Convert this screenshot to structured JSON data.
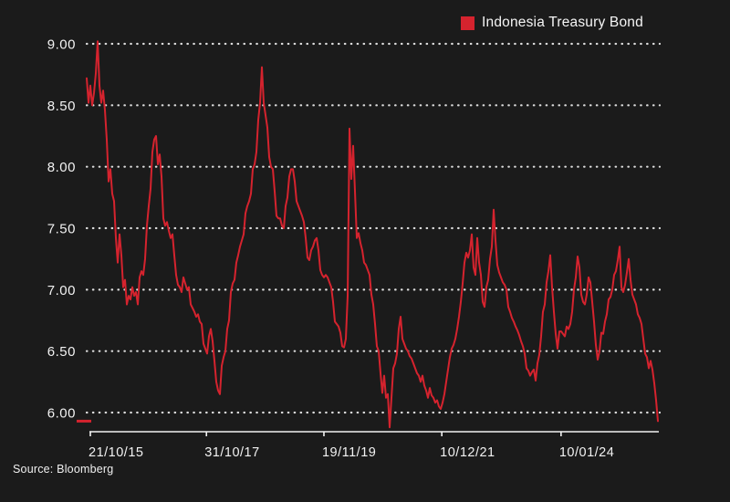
{
  "legend": {
    "label": "Indonesia Treasury Bond"
  },
  "source": {
    "label": "Source: Bloomberg"
  },
  "colors": {
    "background": "#1b1b1b",
    "line": "#d5232e",
    "text": "#f2f2f2",
    "grid": "#ededed",
    "axis": "#f2f2f2"
  },
  "chart_data": {
    "type": "line",
    "title": "",
    "xlabel": "",
    "ylabel": "",
    "legend_position": "top-right",
    "grid": "horizontal-dotted",
    "series_name": "Indonesia Treasury Bond",
    "ylim": [
      5.85,
      9.05
    ],
    "yticks": [
      {
        "label": "9.00",
        "value": 9.0
      },
      {
        "label": "8.50",
        "value": 8.5
      },
      {
        "label": "8.00",
        "value": 8.0
      },
      {
        "label": "7.50",
        "value": 7.5
      },
      {
        "label": "7.00",
        "value": 7.0
      },
      {
        "label": "6.50",
        "value": 6.5
      },
      {
        "label": "6.00",
        "value": 6.0
      }
    ],
    "xticks": [
      {
        "label": "21/10/15",
        "year": 2015.803
      },
      {
        "label": "31/10/17",
        "year": 2017.831
      },
      {
        "label": "19/11/19",
        "year": 2019.883
      },
      {
        "label": "10/12/21",
        "year": 2021.942
      },
      {
        "label": "10/01/24",
        "year": 2024.025
      }
    ],
    "t0": 2015.74,
    "dt": 0.0319,
    "last_value": 5.93,
    "values": [
      8.72,
      8.52,
      8.66,
      8.5,
      8.6,
      8.76,
      9.02,
      8.66,
      8.52,
      8.62,
      8.46,
      8.22,
      7.88,
      7.98,
      7.78,
      7.72,
      7.42,
      7.22,
      7.45,
      7.28,
      7.02,
      7.08,
      6.88,
      6.95,
      6.92,
      7.02,
      6.95,
      6.98,
      6.88,
      7.1,
      7.15,
      7.12,
      7.25,
      7.52,
      7.68,
      7.82,
      8.12,
      8.22,
      8.25,
      8.02,
      8.1,
      7.92,
      7.58,
      7.52,
      7.55,
      7.48,
      7.42,
      7.45,
      7.28,
      7.12,
      7.04,
      7.02,
      6.98,
      7.1,
      7.05,
      7.0,
      7.02,
      6.88,
      6.85,
      6.82,
      6.78,
      6.8,
      6.74,
      6.72,
      6.56,
      6.52,
      6.48,
      6.62,
      6.68,
      6.58,
      6.42,
      6.25,
      6.18,
      6.15,
      6.38,
      6.45,
      6.5,
      6.68,
      6.75,
      6.98,
      7.05,
      7.08,
      7.22,
      7.28,
      7.35,
      7.4,
      7.45,
      7.62,
      7.68,
      7.72,
      7.78,
      7.98,
      8.02,
      8.12,
      8.38,
      8.52,
      8.81,
      8.52,
      8.42,
      8.32,
      8.08,
      8.0,
      7.98,
      7.8,
      7.6,
      7.58,
      7.58,
      7.52,
      7.5,
      7.68,
      7.75,
      7.92,
      7.98,
      7.98,
      7.88,
      7.72,
      7.68,
      7.64,
      7.6,
      7.55,
      7.42,
      7.26,
      7.24,
      7.32,
      7.35,
      7.4,
      7.42,
      7.32,
      7.16,
      7.12,
      7.1,
      7.12,
      7.1,
      7.06,
      7.02,
      6.9,
      6.74,
      6.72,
      6.7,
      6.65,
      6.54,
      6.53,
      6.6,
      6.95,
      8.31,
      7.9,
      8.17,
      7.8,
      7.42,
      7.46,
      7.38,
      7.32,
      7.22,
      7.2,
      7.16,
      7.12,
      6.96,
      6.88,
      6.72,
      6.54,
      6.5,
      6.32,
      6.16,
      6.3,
      6.12,
      6.15,
      5.88,
      6.12,
      6.36,
      6.4,
      6.48,
      6.68,
      6.78,
      6.6,
      6.56,
      6.52,
      6.5,
      6.46,
      6.44,
      6.4,
      6.36,
      6.32,
      6.3,
      6.25,
      6.3,
      6.22,
      6.18,
      6.12,
      6.2,
      6.14,
      6.12,
      6.08,
      6.1,
      6.05,
      6.03,
      6.08,
      6.15,
      6.25,
      6.35,
      6.45,
      6.52,
      6.55,
      6.6,
      6.68,
      6.78,
      6.9,
      7.05,
      7.22,
      7.3,
      7.26,
      7.32,
      7.45,
      7.18,
      7.12,
      7.42,
      7.22,
      7.12,
      6.9,
      6.86,
      7.02,
      7.08,
      7.25,
      7.35,
      7.65,
      7.4,
      7.2,
      7.14,
      7.1,
      7.06,
      7.04,
      7.0,
      6.86,
      6.82,
      6.77,
      6.74,
      6.7,
      6.67,
      6.63,
      6.58,
      6.54,
      6.48,
      6.36,
      6.34,
      6.3,
      6.33,
      6.35,
      6.26,
      6.4,
      6.47,
      6.62,
      6.82,
      6.88,
      7.06,
      7.15,
      7.28,
      7.02,
      6.82,
      6.64,
      6.52,
      6.66,
      6.66,
      6.64,
      6.62,
      6.7,
      6.68,
      6.72,
      6.82,
      7.0,
      7.1,
      7.27,
      7.18,
      6.96,
      6.9,
      6.88,
      6.96,
      7.1,
      7.06,
      6.9,
      6.74,
      6.55,
      6.43,
      6.5,
      6.65,
      6.64,
      6.74,
      6.8,
      6.92,
      6.94,
      7.0,
      7.12,
      7.15,
      7.24,
      7.35,
      7.02,
      6.98,
      7.04,
      7.14,
      7.25,
      7.08,
      6.96,
      6.92,
      6.88,
      6.8,
      6.77,
      6.72,
      6.6,
      6.48,
      6.45,
      6.36,
      6.42,
      6.35,
      6.24,
      6.1,
      5.93
    ]
  }
}
